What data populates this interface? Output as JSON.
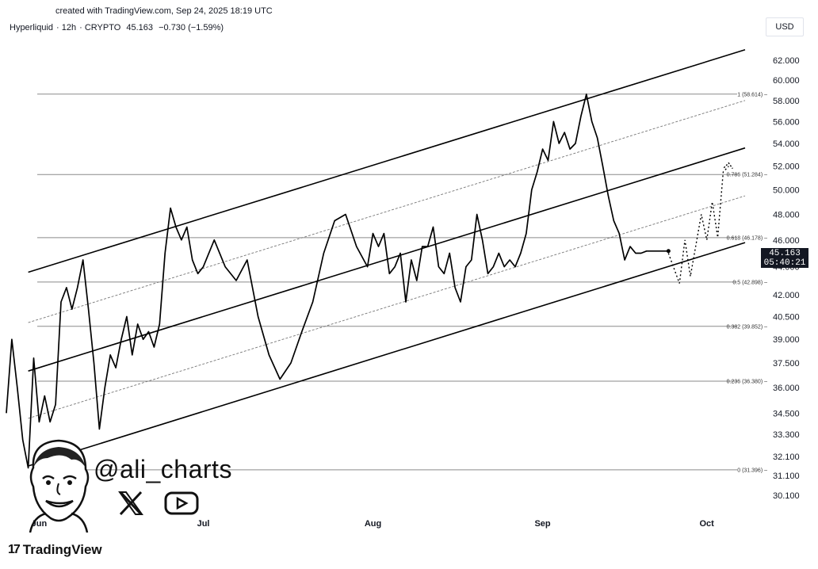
{
  "created_text": "created with TradingView.com, Sep 24, 2025 18:19 UTC",
  "legend": {
    "symbol": "Hyperliquid",
    "interval": "12h",
    "market": "CRYPTO",
    "last": "45.163",
    "change": "−0.730 (−1.59%)"
  },
  "currency": "USD",
  "price_tag": {
    "price": "45.163",
    "countdown": "05:40:21"
  },
  "watermark": {
    "handle": "@ali_charts",
    "icons": [
      "x-logo-icon",
      "youtube-icon"
    ],
    "avatar": "cartoon-avatar"
  },
  "brand": "TradingView",
  "colors": {
    "line": "#000000",
    "fib": "#888888",
    "bg": "#ffffff"
  },
  "chart_data": {
    "type": "line",
    "title": "",
    "scale": "log",
    "ylim": [
      29.2,
      64.0
    ],
    "xlim": [
      "2025-05-26",
      "2025-10-08"
    ],
    "x_ticks": [
      {
        "label": "Jun",
        "date": "2025-06-01"
      },
      {
        "label": "Jul",
        "date": "2025-07-01"
      },
      {
        "label": "Aug",
        "date": "2025-08-01"
      },
      {
        "label": "Sep",
        "date": "2025-09-01"
      },
      {
        "label": "Oct",
        "date": "2025-10-01"
      }
    ],
    "y_ticks": [
      "62.000",
      "60.000",
      "58.000",
      "56.000",
      "54.000",
      "52.000",
      "50.000",
      "48.000",
      "46.000",
      "44.000",
      "42.000",
      "40.500",
      "39.000",
      "37.500",
      "36.000",
      "34.500",
      "33.300",
      "32.100",
      "31.100",
      "30.100"
    ],
    "series": [
      {
        "x": [
          "2025-05-26",
          "2025-05-27",
          "2025-05-28",
          "2025-05-29",
          "2025-05-30",
          "2025-05-31",
          "2025-06-01",
          "2025-06-02",
          "2025-06-03",
          "2025-06-04",
          "2025-06-05",
          "2025-06-06",
          "2025-06-07",
          "2025-06-08",
          "2025-06-09",
          "2025-06-10",
          "2025-06-11",
          "2025-06-12",
          "2025-06-13",
          "2025-06-14",
          "2025-06-15",
          "2025-06-16",
          "2025-06-17",
          "2025-06-18",
          "2025-06-19",
          "2025-06-20",
          "2025-06-21",
          "2025-06-22",
          "2025-06-23",
          "2025-06-24",
          "2025-06-25",
          "2025-06-26",
          "2025-06-27",
          "2025-06-28",
          "2025-06-29",
          "2025-06-30",
          "2025-07-01",
          "2025-07-03",
          "2025-07-05",
          "2025-07-07",
          "2025-07-09",
          "2025-07-11",
          "2025-07-13",
          "2025-07-15",
          "2025-07-17",
          "2025-07-19",
          "2025-07-21",
          "2025-07-23",
          "2025-07-25",
          "2025-07-27",
          "2025-07-29",
          "2025-07-31",
          "2025-08-01",
          "2025-08-02",
          "2025-08-03",
          "2025-08-04",
          "2025-08-05",
          "2025-08-06",
          "2025-08-07",
          "2025-08-08",
          "2025-08-09",
          "2025-08-10",
          "2025-08-11",
          "2025-08-12",
          "2025-08-13",
          "2025-08-14",
          "2025-08-15",
          "2025-08-16",
          "2025-08-17",
          "2025-08-18",
          "2025-08-19",
          "2025-08-20",
          "2025-08-21",
          "2025-08-22",
          "2025-08-23",
          "2025-08-24",
          "2025-08-25",
          "2025-08-26",
          "2025-08-27",
          "2025-08-28",
          "2025-08-29",
          "2025-08-30",
          "2025-08-31",
          "2025-09-01",
          "2025-09-02",
          "2025-09-03",
          "2025-09-04",
          "2025-09-05",
          "2025-09-06",
          "2025-09-07",
          "2025-09-08",
          "2025-09-09",
          "2025-09-10",
          "2025-09-11",
          "2025-09-12",
          "2025-09-13",
          "2025-09-14",
          "2025-09-15",
          "2025-09-16",
          "2025-09-17",
          "2025-09-18",
          "2025-09-19",
          "2025-09-20",
          "2025-09-21",
          "2025-09-22",
          "2025-09-23",
          "2025-09-24"
        ],
        "values": [
          34.5,
          39.0,
          36.0,
          33.0,
          31.5,
          37.8,
          34.0,
          35.5,
          34.0,
          35.0,
          41.5,
          42.5,
          41.0,
          42.5,
          44.5,
          41.0,
          37.5,
          33.6,
          36.0,
          38.0,
          37.2,
          39.0,
          40.5,
          38.0,
          40.0,
          39.0,
          39.5,
          38.5,
          40.0,
          45.0,
          48.5,
          47.0,
          46.0,
          47.0,
          44.5,
          43.5,
          44.0,
          46.0,
          44.0,
          43.0,
          44.5,
          40.5,
          38.0,
          36.5,
          37.5,
          39.5,
          41.5,
          45.0,
          47.5,
          48.0,
          45.5,
          44.0,
          46.5,
          45.5,
          46.5,
          43.5,
          44.0,
          45.0,
          41.5,
          44.5,
          43.0,
          45.5,
          45.5,
          47.0,
          44.0,
          43.5,
          45.0,
          42.5,
          41.5,
          44.0,
          44.5,
          48.0,
          46.0,
          43.5,
          44.0,
          45.0,
          44.0,
          44.5,
          44.0,
          45.0,
          46.5,
          50.0,
          51.5,
          53.5,
          52.5,
          56.0,
          54.0,
          55.0,
          53.5,
          54.0,
          56.5,
          58.6,
          56.0,
          54.5,
          52.0,
          49.5,
          47.5,
          46.5,
          44.5,
          45.5,
          45.0,
          45.0,
          45.163,
          45.163,
          45.163,
          45.163,
          45.163
        ]
      }
    ],
    "projection": {
      "x": [
        "2025-09-24",
        "2025-09-26",
        "2025-09-27",
        "2025-09-28",
        "2025-09-30",
        "2025-10-01",
        "2025-10-02",
        "2025-10-03",
        "2025-10-04",
        "2025-10-05"
      ],
      "values": [
        45.0,
        42.8,
        46.0,
        43.3,
        48.0,
        46.0,
        49.0,
        46.2,
        51.5,
        52.0
      ]
    },
    "fib_levels": [
      {
        "label": "1 (58.614)",
        "value": 58.614
      },
      {
        "label": "0.786 (51.284)",
        "value": 51.284
      },
      {
        "label": "0.618 (46.178)",
        "value": 46.178
      },
      {
        "label": "0.5 (42.898)",
        "value": 42.898
      },
      {
        "label": "0.382 (39.852)",
        "value": 39.852
      },
      {
        "label": "0.236 (36.380)",
        "value": 36.38
      },
      {
        "label": "0 (31.396)",
        "value": 31.396
      }
    ],
    "channel": {
      "upper": [
        {
          "x": "2025-05-30",
          "y": 43.6
        },
        {
          "x": "2025-10-08",
          "y": 63.1
        }
      ],
      "middle": [
        {
          "x": "2025-05-30",
          "y": 37.0
        },
        {
          "x": "2025-10-08",
          "y": 53.6
        }
      ],
      "lower": [
        {
          "x": "2025-05-30",
          "y": 31.6
        },
        {
          "x": "2025-10-08",
          "y": 45.8
        }
      ],
      "upper_mid": [
        {
          "x": "2025-05-30",
          "y": 40.1
        },
        {
          "x": "2025-10-08",
          "y": 58.0
        }
      ],
      "lower_mid": [
        {
          "x": "2025-05-30",
          "y": 34.2
        },
        {
          "x": "2025-10-08",
          "y": 49.5
        }
      ]
    }
  }
}
